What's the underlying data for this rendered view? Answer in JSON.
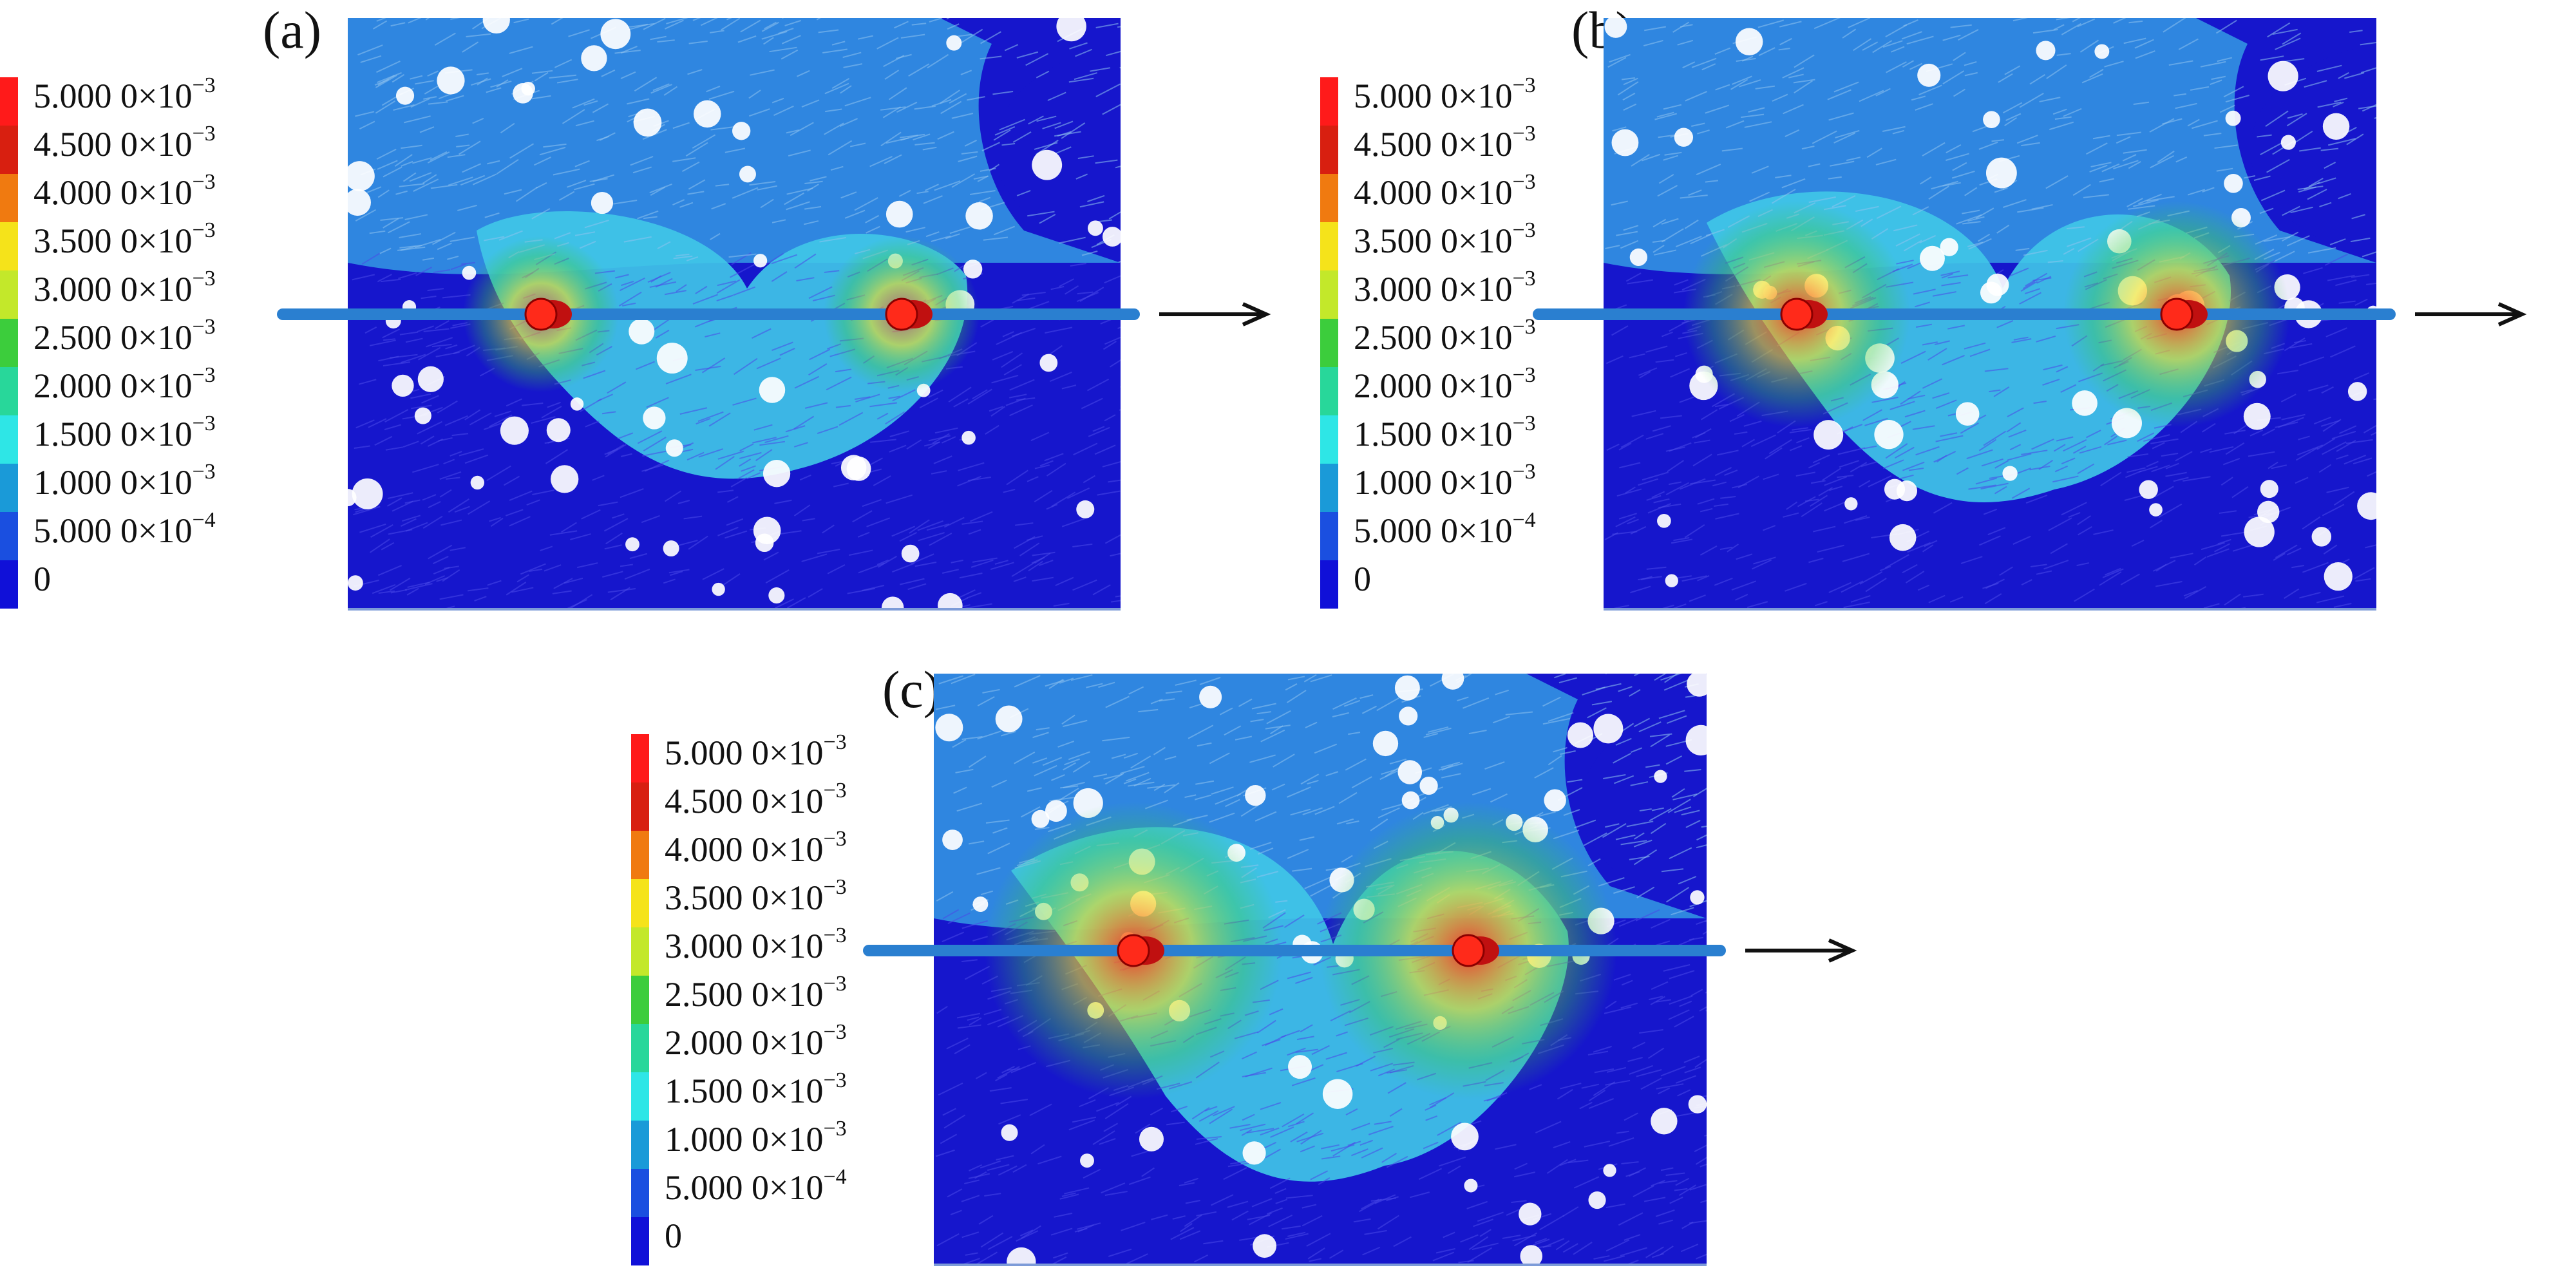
{
  "figure": {
    "panels": [
      {
        "id": "a",
        "label": "(a)"
      },
      {
        "id": "b",
        "label": "(b)"
      },
      {
        "id": "c",
        "label": "(c)"
      }
    ],
    "legend": {
      "labels": [
        {
          "base": "5.000 0×10",
          "exp": "−3"
        },
        {
          "base": "4.500 0×10",
          "exp": "−3"
        },
        {
          "base": "4.000 0×10",
          "exp": "−3"
        },
        {
          "base": "3.500 0×10",
          "exp": "−3"
        },
        {
          "base": "3.000 0×10",
          "exp": "−3"
        },
        {
          "base": "2.500 0×10",
          "exp": "−3"
        },
        {
          "base": "2.000 0×10",
          "exp": "−3"
        },
        {
          "base": "1.500 0×10",
          "exp": "−3"
        },
        {
          "base": "1.000 0×10",
          "exp": "−3"
        },
        {
          "base": "5.000 0×10",
          "exp": "−4"
        },
        {
          "base": "0",
          "exp": ""
        }
      ],
      "colors": [
        "#ff1a1a",
        "#d81f10",
        "#f07a10",
        "#f5e31a",
        "#c3e82a",
        "#3ccd3c",
        "#28d79a",
        "#2ee6e6",
        "#1a9ad8",
        "#1a4fe0",
        "#1010d8"
      ]
    },
    "colors": {
      "low_field": "#1616cc",
      "mid_field": "#2f86e0",
      "disturbed": "#40c8e8",
      "high": "#ff2a1a",
      "rod": "#2a7fd0",
      "arrow": "#111111"
    }
  }
}
